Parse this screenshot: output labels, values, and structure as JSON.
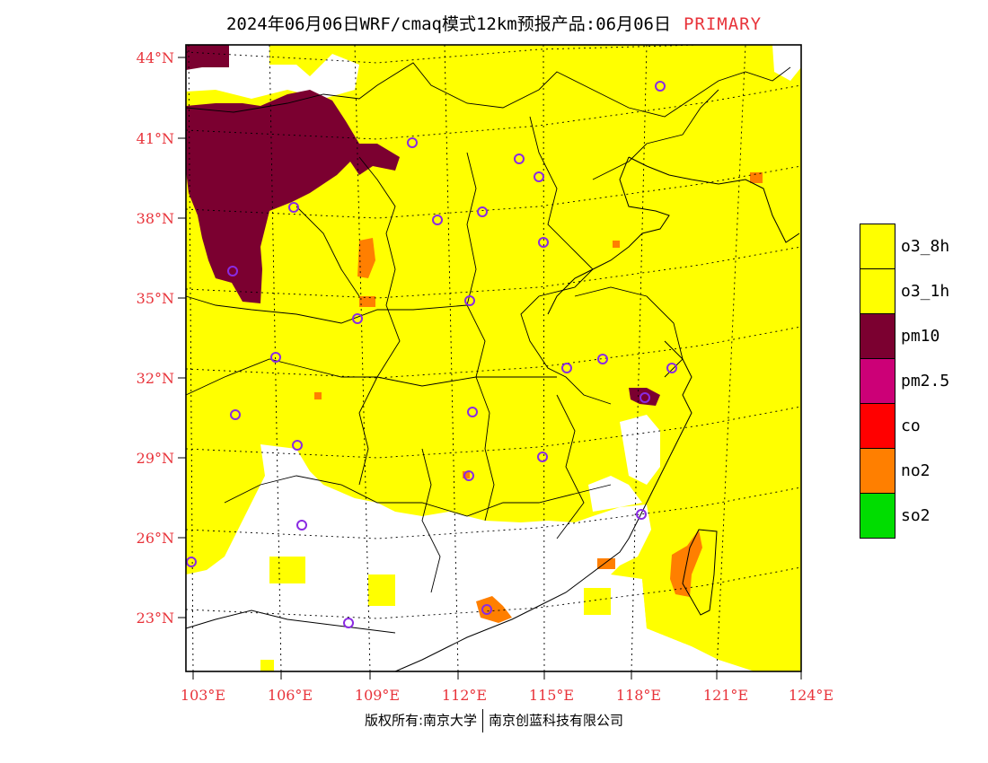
{
  "title": {
    "main": "2024年06月06日WRF/cmaq模式12km预报产品:06月06日",
    "tag": "PRIMARY"
  },
  "axes": {
    "lat_labels": [
      "44°N",
      "41°N",
      "38°N",
      "35°N",
      "32°N",
      "29°N",
      "26°N",
      "23°N"
    ],
    "lon_labels": [
      "103°E",
      "106°E",
      "109°E",
      "112°E",
      "115°E",
      "118°E",
      "121°E",
      "124°E"
    ]
  },
  "legend": [
    {
      "label": "o3_8h",
      "color": "#ffff00"
    },
    {
      "label": "o3_1h",
      "color": "#ffff00"
    },
    {
      "label": "pm10",
      "color": "#7b0030"
    },
    {
      "label": "pm2.5",
      "color": "#cc0077"
    },
    {
      "label": "co",
      "color": "#ff0000"
    },
    {
      "label": "no2",
      "color": "#ff7f00"
    },
    {
      "label": "so2",
      "color": "#00dd00"
    }
  ],
  "footer": {
    "left": "版权所有:南京大学",
    "right": "南京创蓝科技有限公司"
  },
  "colors": {
    "ozone": "#ffff00",
    "pm10": "#7b0030",
    "no2": "#ff7f00",
    "label_red": "#e8333a",
    "city_marker": "#8a2be2"
  }
}
